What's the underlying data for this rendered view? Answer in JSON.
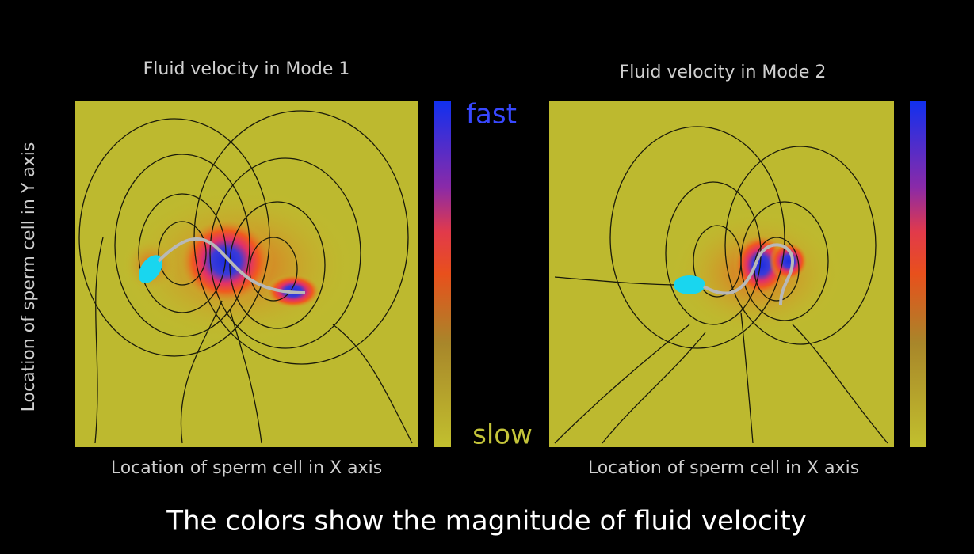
{
  "panels": [
    {
      "title": "Fluid velocity in Mode 1",
      "y_axis_label": "Location of sperm cell in Y axis",
      "x_axis_label": "Location of sperm cell in X axis",
      "colorbar": {
        "high_label": "fast",
        "low_label": "slow"
      }
    },
    {
      "title": "Fluid velocity in Mode 2",
      "x_axis_label": "Location of sperm cell in X axis"
    }
  ],
  "caption": "The colors show the magnitude of fluid velocity"
}
